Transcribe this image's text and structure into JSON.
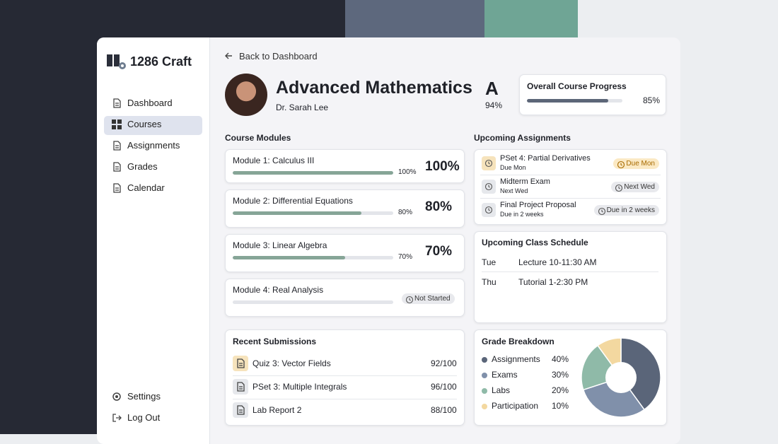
{
  "sidebar": {
    "brand": "1286 Craft",
    "nav": [
      "Dashboard",
      "Courses",
      "Assignments",
      "Grades",
      "Calendar"
    ],
    "active": 1,
    "footer": [
      "Settings",
      "Log Out"
    ]
  },
  "header": {
    "back": "Back to Dashboard",
    "title": "Advanced Mathematics",
    "instructor": "Dr. Sarah Lee",
    "grade": "A",
    "grade_percent": "94%"
  },
  "overall_progress": {
    "title": "Overall Course Progress",
    "value": 85,
    "label": "85%"
  },
  "modules": {
    "title": "Course Modules",
    "items": [
      {
        "name": "Module 1: Calculus III",
        "progress": 100,
        "label": "100%"
      },
      {
        "name": "Module 2: Differential Equations",
        "progress": 80,
        "label": "80%"
      },
      {
        "name": "Module 3: Linear Algebra",
        "progress": 70,
        "label": "70%"
      },
      {
        "name": "Module 4: Real Analysis",
        "status": "Not Started"
      }
    ]
  },
  "submissions": {
    "title": "Recent Submissions",
    "items": [
      {
        "name": "Quiz 3: Vector Fields",
        "score": "92/100"
      },
      {
        "name": "PSet 3: Multiple Integrals",
        "score": "96/100"
      },
      {
        "name": "Lab Report 2",
        "score": "88/100"
      }
    ]
  },
  "assignments": {
    "title": "Upcoming Assignments",
    "items": [
      {
        "name": "PSet 4: Partial Derivatives",
        "due": "Due Mon"
      },
      {
        "name": "Midterm Exam",
        "due": "Next Wed"
      },
      {
        "name": "Final Project Proposal",
        "due": "Due in 2 weeks"
      }
    ]
  },
  "schedule": {
    "title": "Upcoming Class Schedule",
    "rows": [
      {
        "day": "Tue",
        "event": "Lecture 10-11:30 AM"
      },
      {
        "day": "Thu",
        "event": "Tutorial 1-2:30 PM"
      }
    ]
  },
  "grade_breakdown": {
    "type": "pie",
    "title": "Grade Breakdown",
    "categories": [
      "Assignments",
      "Exams",
      "Labs",
      "Participation"
    ],
    "values": [
      40,
      30,
      20,
      10
    ],
    "value_labels": [
      "40%",
      "30%",
      "20%",
      "10%"
    ],
    "colors": [
      "#5a6579",
      "#8090aa",
      "#8fbaa8",
      "#f3d8a0"
    ]
  }
}
